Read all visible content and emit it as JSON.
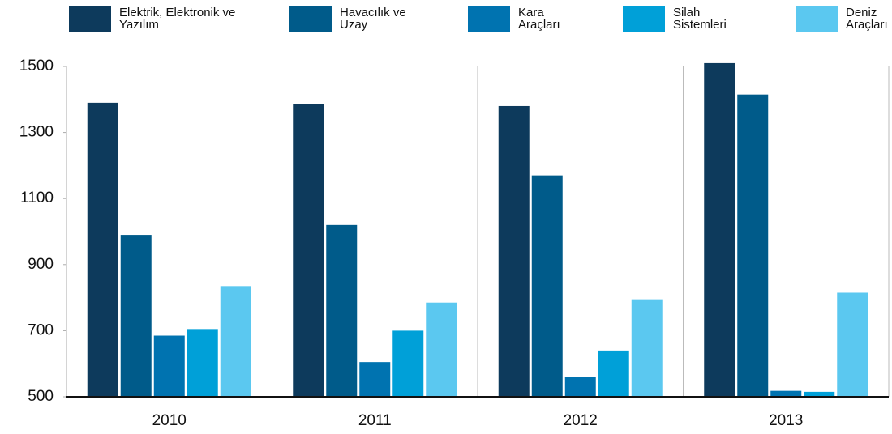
{
  "chart_data": {
    "type": "bar",
    "categories": [
      "2010",
      "2011",
      "2012",
      "2013"
    ],
    "series": [
      {
        "name": "Elektrik, Elektronik ve Yazılım",
        "color": "#0d3a5c",
        "values": [
          1390,
          1385,
          1380,
          1510
        ]
      },
      {
        "name": "Havacılık ve Uzay",
        "color": "#005b8a",
        "values": [
          990,
          1020,
          1170,
          1415
        ]
      },
      {
        "name": "Kara Araçları",
        "color": "#0073b0",
        "values": [
          685,
          605,
          560,
          518
        ]
      },
      {
        "name": "Silah Sistemleri",
        "color": "#00a0d8",
        "values": [
          705,
          700,
          640,
          515
        ]
      },
      {
        "name": "Deniz Araçları",
        "color": "#5bc8f0",
        "values": [
          835,
          785,
          795,
          815
        ]
      }
    ],
    "ylim": [
      500,
      1500
    ],
    "yticks": [
      500,
      700,
      900,
      1100,
      1300,
      1500
    ],
    "grid": true,
    "legend": "top"
  }
}
